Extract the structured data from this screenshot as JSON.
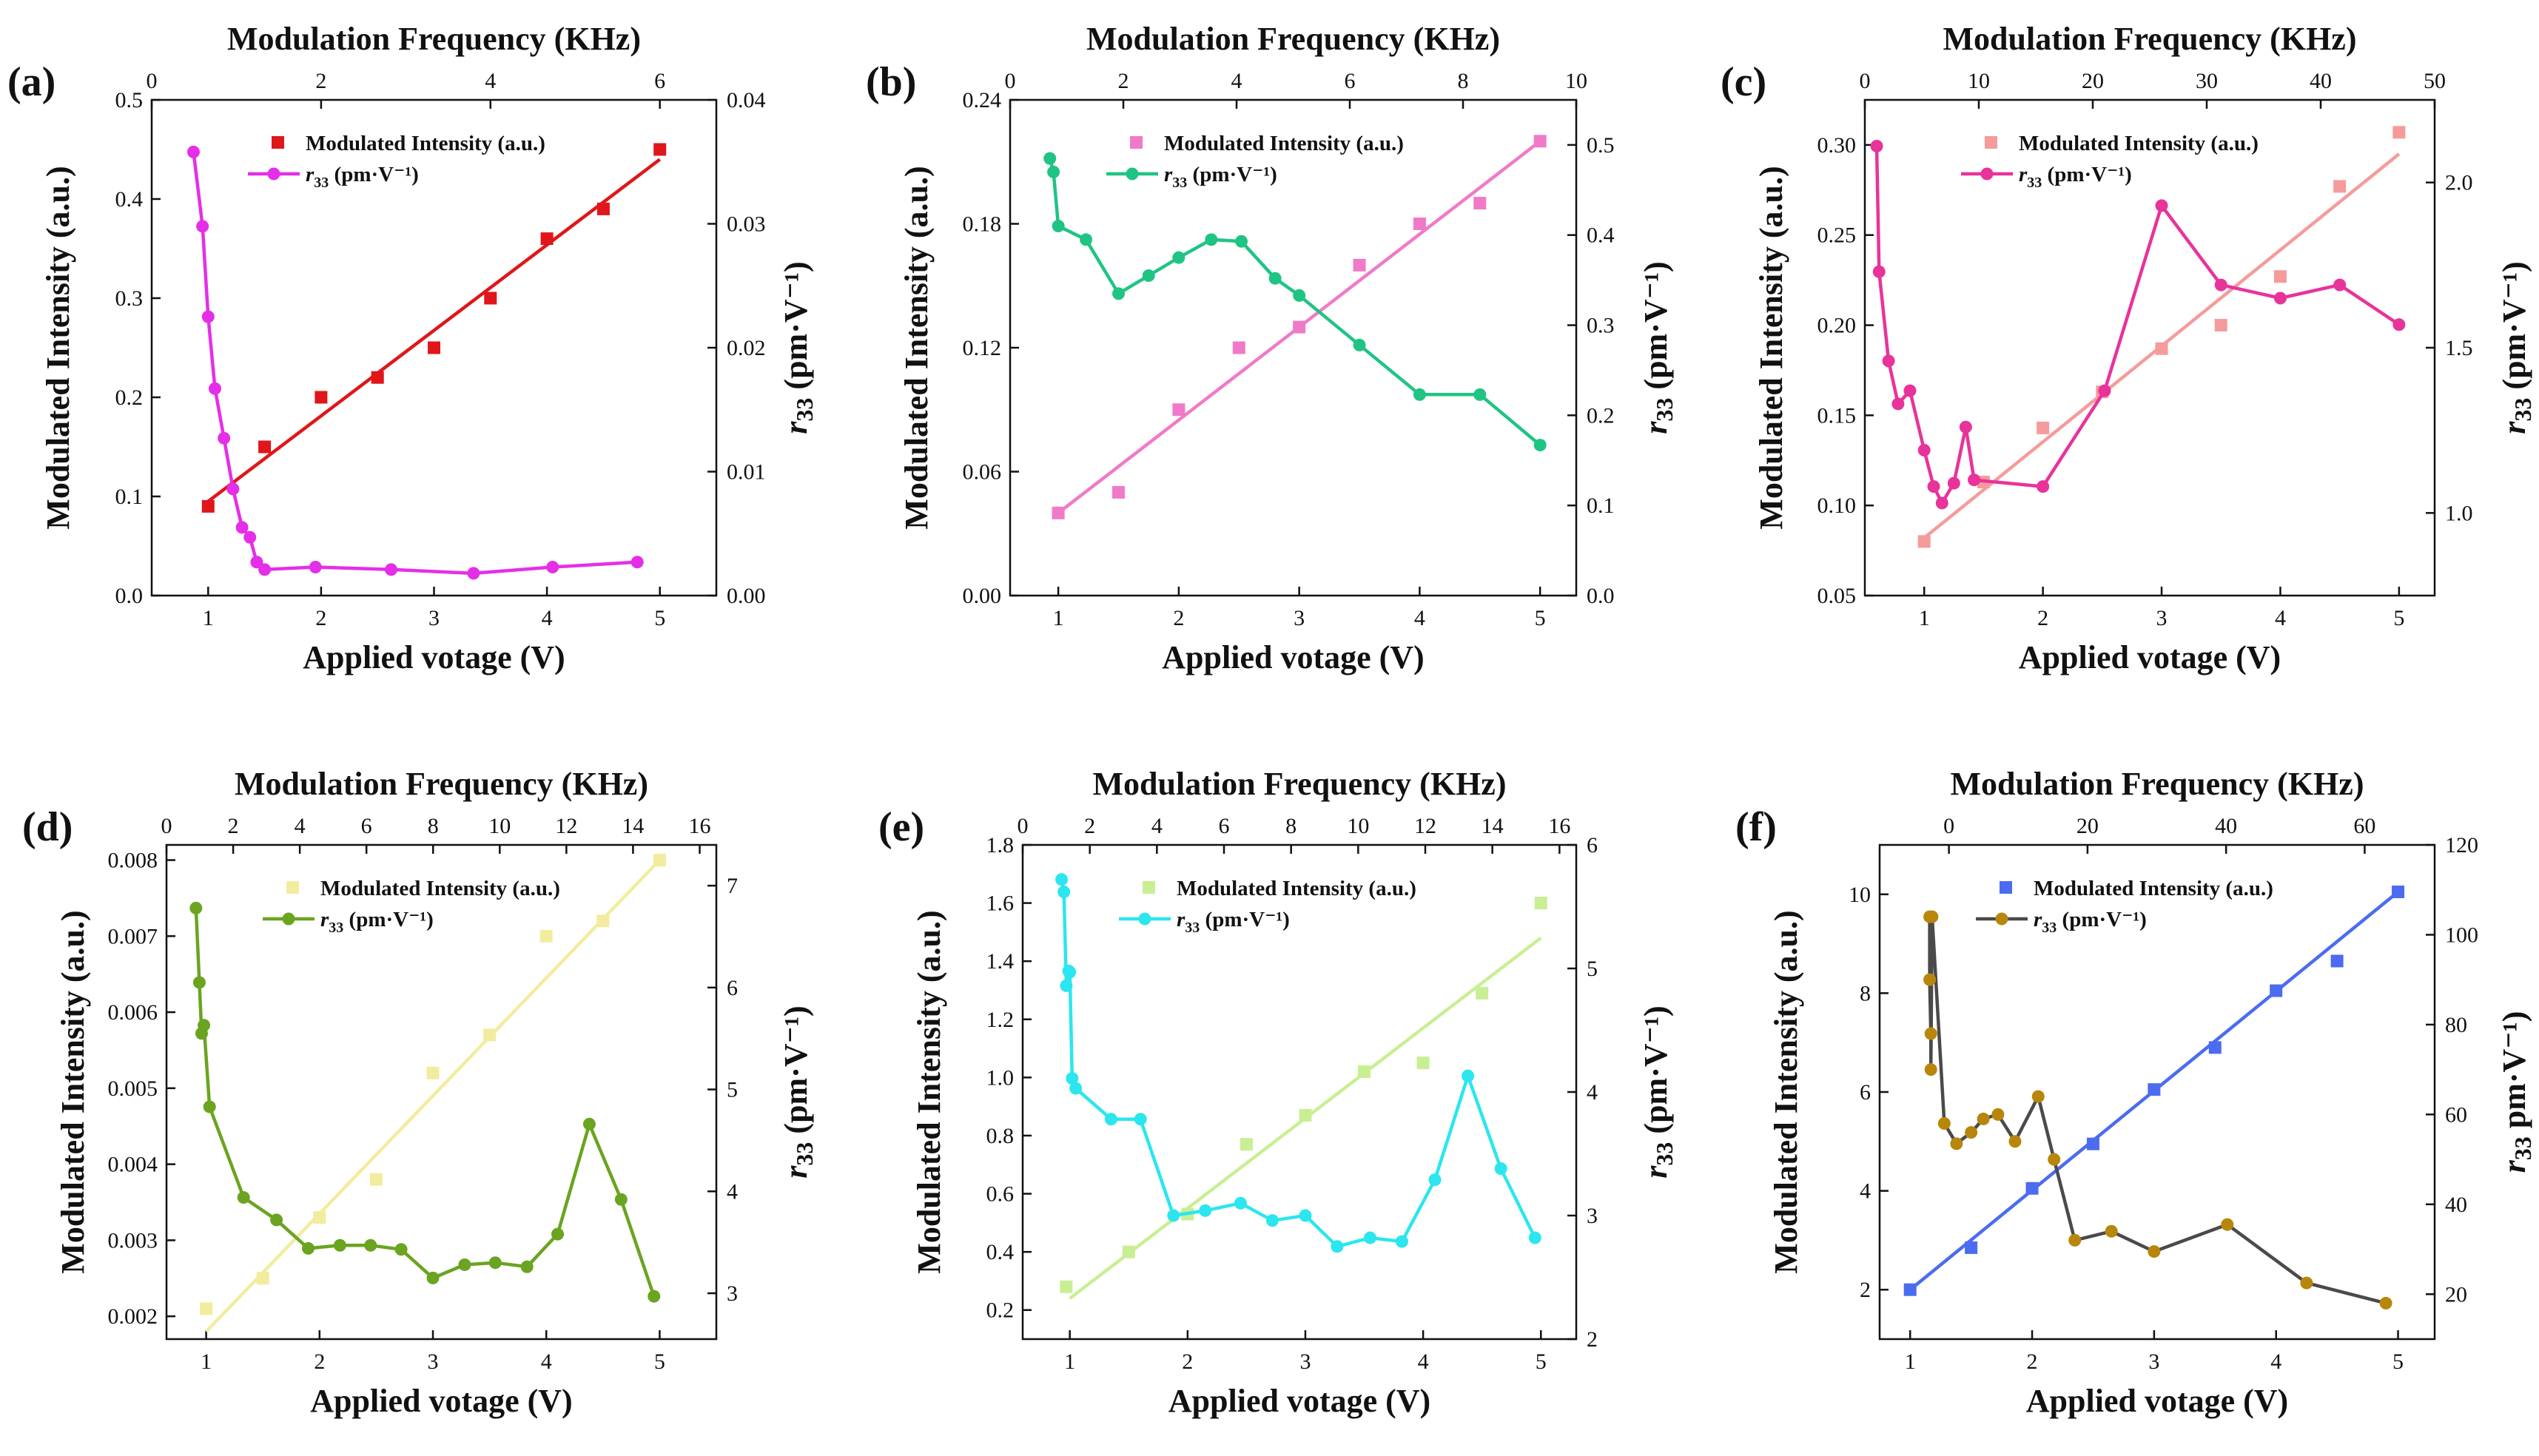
{
  "figure": {
    "panels": [
      {
        "label": "(a)",
        "top_label": "Modulation Frequency (KHz)",
        "bottom_label": "Applied votage (V)",
        "left_label": "Modulated Intensity (a.u.)",
        "right_label_main": "r",
        "right_label_sub": "33",
        "right_label_rest": " (pm·V⁻¹)",
        "legend_intensity": "Modulated Intensity (a.u.)",
        "legend_r33_main": "r",
        "legend_r33_sub": "33",
        "legend_r33_rest": " (pm·V⁻¹)",
        "colors": {
          "intensity": "#e0161a",
          "r33": "#e52ee8"
        }
      },
      {
        "label": "(b)",
        "top_label": "Modulation Frequency (KHz)",
        "bottom_label": "Applied votage (V)",
        "left_label": "Modulated Intensity (a.u.)",
        "right_label_main": "r",
        "right_label_sub": "33",
        "right_label_rest": " (pm·V⁻¹)",
        "legend_intensity": "Modulated Intensity (a.u.)",
        "legend_r33_main": "r",
        "legend_r33_sub": "33",
        "legend_r33_rest": " (pm·V⁻¹)",
        "colors": {
          "intensity": "#f07ac8",
          "r33": "#1fc483"
        }
      },
      {
        "label": "(c)",
        "top_label": "Modulation Frequency (KHz)",
        "bottom_label": "Applied votage (V)",
        "left_label": "Modulated Intensity (a.u.)",
        "right_label_main": "r",
        "right_label_sub": "33",
        "right_label_rest": " (pm·V⁻¹)",
        "legend_intensity": "Modulated Intensity (a.u.)",
        "legend_r33_main": "r",
        "legend_r33_sub": "33",
        "legend_r33_rest": " (pm·V⁻¹)",
        "colors": {
          "intensity": "#f59b9b",
          "r33": "#e8339b"
        }
      },
      {
        "label": "(d)",
        "top_label": "Modulation Frequency (KHz)",
        "bottom_label": "Applied votage (V)",
        "left_label": "Modulated Intensity (a.u.)",
        "right_label_main": "r",
        "right_label_sub": "33",
        "right_label_rest": " (pm·V⁻¹)",
        "legend_intensity": "Modulated Intensity (a.u.)",
        "legend_r33_main": "r",
        "legend_r33_sub": "33",
        "legend_r33_rest": " (pm·V⁻¹)",
        "colors": {
          "intensity": "#f2ec9e",
          "r33": "#6aa421"
        }
      },
      {
        "label": "(e)",
        "top_label": "Modulation Frequency (KHz)",
        "bottom_label": "Applied votage (V)",
        "left_label": "Modulated Intensity (a.u.)",
        "right_label_main": "r",
        "right_label_sub": "33",
        "right_label_rest": " (pm·V⁻¹)",
        "legend_intensity": "Modulated Intensity (a.u.)",
        "legend_r33_main": "r",
        "legend_r33_sub": "33",
        "legend_r33_rest": " (pm·V⁻¹)",
        "colors": {
          "intensity": "#c8ef93",
          "r33": "#2be6ef"
        }
      },
      {
        "label": "(f)",
        "top_label": "Modulation Frequency (KHz)",
        "bottom_label": "Applied votage (V)",
        "left_label": "Modulated Intensity (a.u.)",
        "right_label_main": "r",
        "right_label_sub": "33",
        "right_label_rest": " pm·V⁻¹)",
        "legend_intensity": "Modulated Intensity (a.u.)",
        "legend_r33_main": "r",
        "legend_r33_sub": "33",
        "legend_r33_rest": " (pm·V⁻¹)",
        "colors": {
          "intensity": "#4b6cf0",
          "r33": "#4a4a4a",
          "r33_marker": "#b8860b"
        }
      }
    ]
  },
  "chart_data": [
    {
      "type": "scatter",
      "panel": "(a)",
      "xlabel": "Applied votage (V)",
      "x2label": "Modulation Frequency (KHz)",
      "ylabel": "Modulated Intensity (a.u.)",
      "y2label": "r33 (pm·V⁻¹)",
      "xlim": [
        0.5,
        5.5
      ],
      "xticks": [
        1,
        2,
        3,
        4,
        5
      ],
      "x2lim": [
        0,
        6.667
      ],
      "x2ticks": [
        0,
        2,
        4,
        6
      ],
      "ylim": [
        0,
        0.5
      ],
      "yticks": [
        0.0,
        0.1,
        0.2,
        0.3,
        0.4,
        0.5
      ],
      "ytick_labels": [
        "0.0",
        "0.1",
        "0.2",
        "0.3",
        "0.4",
        "0.5"
      ],
      "y2lim": [
        0,
        0.04
      ],
      "y2ticks": [
        0,
        0.01,
        0.02,
        0.03,
        0.04
      ],
      "y2tick_labels": [
        "0.00",
        "0.01",
        "0.02",
        "0.03",
        "0.04"
      ],
      "intensity": {
        "x": [
          1.0,
          1.5,
          2.0,
          2.5,
          3.0,
          3.5,
          4.0,
          4.5,
          5.0
        ],
        "y": [
          0.09,
          0.15,
          0.2,
          0.22,
          0.25,
          0.3,
          0.36,
          0.39,
          0.45
        ],
        "marker": "square"
      },
      "fit": {
        "x": [
          1.0,
          5.0
        ],
        "y": [
          0.095,
          0.44
        ]
      },
      "r33": {
        "x": [
          0.87,
          0.95,
          1.0,
          1.06,
          1.14,
          1.22,
          1.3,
          1.37,
          1.43,
          1.5,
          1.95,
          2.62,
          3.35,
          4.05,
          4.8
        ],
        "y": [
          0.0358,
          0.0298,
          0.0225,
          0.0167,
          0.0127,
          0.0086,
          0.0055,
          0.0047,
          0.0027,
          0.0021,
          0.0023,
          0.0021,
          0.0018,
          0.0023,
          0.0027
        ],
        "marker": "circle"
      }
    },
    {
      "type": "scatter",
      "panel": "(b)",
      "xlabel": "Applied votage (V)",
      "x2label": "Modulation Frequency (KHz)",
      "ylabel": "Modulated Intensity (a.u.)",
      "y2label": "r33 (pm·V⁻¹)",
      "xlim": [
        0.6,
        5.3
      ],
      "xticks": [
        1,
        2,
        3,
        4,
        5
      ],
      "x2lim": [
        0,
        10
      ],
      "x2ticks": [
        0,
        2,
        4,
        6,
        8,
        10
      ],
      "ylim": [
        0,
        0.24
      ],
      "yticks": [
        0,
        0.06,
        0.12,
        0.18,
        0.24
      ],
      "ytick_labels": [
        "0.00",
        "0.06",
        "0.12",
        "0.18",
        "0.24"
      ],
      "y2lim": [
        0,
        0.55
      ],
      "y2ticks": [
        0,
        0.1,
        0.2,
        0.3,
        0.4,
        0.5
      ],
      "y2tick_labels": [
        "0.0",
        "0.1",
        "0.2",
        "0.3",
        "0.4",
        "0.5"
      ],
      "intensity": {
        "x": [
          1.0,
          1.5,
          2.0,
          2.5,
          3.0,
          3.5,
          4.0,
          4.5,
          5.0
        ],
        "y": [
          0.04,
          0.05,
          0.09,
          0.12,
          0.13,
          0.16,
          0.18,
          0.19,
          0.22
        ],
        "marker": "square"
      },
      "fit": {
        "x": [
          1.0,
          5.0
        ],
        "y": [
          0.04,
          0.22
        ]
      },
      "r33": {
        "x": [
          0.93,
          0.96,
          1.0,
          1.23,
          1.5,
          1.75,
          2.0,
          2.27,
          2.52,
          2.8,
          3.0,
          3.5,
          4.0,
          4.5,
          5.0
        ],
        "y": [
          0.485,
          0.47,
          0.41,
          0.395,
          0.335,
          0.355,
          0.375,
          0.395,
          0.393,
          0.352,
          0.333,
          0.278,
          0.223,
          0.223,
          0.167
        ],
        "marker": "circle"
      }
    },
    {
      "type": "scatter",
      "panel": "(c)",
      "xlabel": "Applied votage (V)",
      "x2label": "Modulation Frequency (KHz)",
      "ylabel": "Modulated Intensity (a.u.)",
      "y2label": "r33 (pm·V⁻¹)",
      "xlim": [
        0.5,
        5.3
      ],
      "xticks": [
        1,
        2,
        3,
        4,
        5
      ],
      "x2lim": [
        0,
        50
      ],
      "x2ticks": [
        0,
        10,
        20,
        30,
        40,
        50
      ],
      "ylim": [
        0.05,
        0.325
      ],
      "yticks": [
        0.05,
        0.1,
        0.15,
        0.2,
        0.25,
        0.3
      ],
      "ytick_labels": [
        "0.05",
        "0.10",
        "0.15",
        "0.20",
        "0.25",
        "0.30"
      ],
      "y2lim": [
        0.75,
        2.25
      ],
      "y2ticks": [
        1.0,
        1.5,
        2.0
      ],
      "y2tick_labels": [
        "1.0",
        "1.5",
        "2.0"
      ],
      "intensity": {
        "x": [
          1.0,
          1.5,
          2.0,
          2.5,
          3.0,
          3.5,
          4.0,
          4.5,
          5.0
        ],
        "y": [
          0.08,
          0.113,
          0.143,
          0.163,
          0.187,
          0.2,
          0.227,
          0.277,
          0.307
        ],
        "marker": "square"
      },
      "fit": {
        "x": [
          1.0,
          5.0
        ],
        "y": [
          0.082,
          0.295
        ]
      },
      "r33": {
        "x": [
          0.6,
          0.62,
          0.7,
          0.78,
          0.88,
          1.0,
          1.08,
          1.15,
          1.25,
          1.35,
          1.42,
          2.0,
          2.52,
          3.0,
          3.5,
          4.0,
          4.5,
          5.0
        ],
        "y": [
          2.11,
          1.73,
          1.46,
          1.33,
          1.37,
          1.19,
          1.08,
          1.03,
          1.09,
          1.26,
          1.1,
          1.08,
          1.37,
          1.93,
          1.69,
          1.65,
          1.69,
          1.57
        ],
        "marker": "circle"
      }
    },
    {
      "type": "scatter",
      "panel": "(d)",
      "xlabel": "Applied votage (V)",
      "x2label": "Modulation Frequency (KHz)",
      "ylabel": "Modulated Intensity (a.u.)",
      "y2label": "r33 (pm·V⁻¹)",
      "xlim": [
        0.65,
        5.5
      ],
      "xticks": [
        1,
        2,
        3,
        4,
        5
      ],
      "x2lim": [
        0,
        16.5
      ],
      "x2ticks": [
        0,
        2,
        4,
        6,
        8,
        10,
        12,
        14,
        16
      ],
      "ylim": [
        0.0017,
        0.0082
      ],
      "yticks": [
        0.002,
        0.003,
        0.004,
        0.005,
        0.006,
        0.007,
        0.008
      ],
      "ytick_labels": [
        "0.002",
        "0.003",
        "0.004",
        "0.005",
        "0.006",
        "0.007",
        "0.008"
      ],
      "y2lim": [
        2.55,
        7.4
      ],
      "y2ticks": [
        3,
        4,
        5,
        6,
        7
      ],
      "y2tick_labels": [
        "3",
        "4",
        "5",
        "6",
        "7"
      ],
      "intensity": {
        "x": [
          1.0,
          1.5,
          2.0,
          2.5,
          3.0,
          3.5,
          4.0,
          4.5,
          5.0
        ],
        "y": [
          0.0021,
          0.0025,
          0.0033,
          0.0038,
          0.0052,
          0.0057,
          0.007,
          0.0072,
          0.008
        ],
        "marker": "square"
      },
      "fit": {
        "x": [
          1.0,
          5.0
        ],
        "y": [
          0.0018,
          0.008
        ]
      },
      "r33": {
        "x": [
          0.91,
          0.94,
          0.96,
          0.98,
          1.03,
          1.33,
          1.62,
          1.9,
          2.18,
          2.45,
          2.72,
          3.0,
          3.28,
          3.55,
          3.83,
          4.1,
          4.38,
          4.66,
          4.95
        ],
        "y": [
          6.78,
          6.05,
          5.55,
          5.63,
          4.83,
          3.94,
          3.72,
          3.44,
          3.47,
          3.47,
          3.43,
          3.15,
          3.28,
          3.3,
          3.26,
          3.58,
          4.66,
          3.92,
          2.97
        ],
        "marker": "circle"
      }
    },
    {
      "type": "scatter",
      "panel": "(e)",
      "xlabel": "Applied votage (V)",
      "x2label": "Modulation Frequency (KHz)",
      "ylabel": "Modulated Intensity (a.u.)",
      "y2label": "r33 (pm·V⁻¹)",
      "xlim": [
        0.6,
        5.3
      ],
      "xticks": [
        1,
        2,
        3,
        4,
        5
      ],
      "x2lim": [
        0,
        16.5
      ],
      "x2ticks": [
        0,
        2,
        4,
        6,
        8,
        10,
        12,
        14,
        16
      ],
      "ylim": [
        0.1,
        1.8
      ],
      "yticks": [
        0.2,
        0.4,
        0.6,
        0.8,
        1.0,
        1.2,
        1.4,
        1.6,
        1.8
      ],
      "ytick_labels": [
        "0.2",
        "0.4",
        "0.6",
        "0.8",
        "1.0",
        "1.2",
        "1.4",
        "1.6",
        "1.8"
      ],
      "y2lim": [
        2,
        6
      ],
      "y2ticks": [
        2,
        3,
        4,
        5,
        6
      ],
      "y2tick_labels": [
        "2",
        "3",
        "4",
        "5",
        "6"
      ],
      "intensity": {
        "x": [
          0.97,
          1.5,
          2.0,
          2.5,
          3.0,
          3.5,
          4.0,
          4.5,
          5.0
        ],
        "y": [
          0.28,
          0.4,
          0.53,
          0.77,
          0.87,
          1.02,
          1.05,
          1.29,
          1.6
        ],
        "marker": "square"
      },
      "fit": {
        "x": [
          1.0,
          5.0
        ],
        "y": [
          0.24,
          1.48
        ]
      },
      "r33": {
        "x": [
          0.93,
          0.95,
          0.97,
          0.99,
          1.0,
          1.02,
          1.05,
          1.35,
          1.6,
          1.88,
          2.15,
          2.45,
          2.72,
          3.0,
          3.27,
          3.55,
          3.82,
          4.1,
          4.38,
          4.66,
          4.95
        ],
        "y": [
          5.72,
          5.62,
          4.86,
          4.98,
          4.97,
          4.11,
          4.03,
          3.78,
          3.78,
          3.0,
          3.04,
          3.1,
          2.96,
          3.0,
          2.75,
          2.82,
          2.79,
          3.29,
          4.13,
          3.38,
          2.82
        ],
        "marker": "circle"
      }
    },
    {
      "type": "scatter",
      "panel": "(f)",
      "xlabel": "Applied votage (V)",
      "x2label": "Modulation Frequency (KHz)",
      "ylabel": "Modulated Intensity (a.u.)",
      "y2label": "r33 pm·V⁻¹)",
      "xlim": [
        0.75,
        5.3
      ],
      "xticks": [
        1,
        2,
        3,
        4,
        5
      ],
      "x2lim": [
        -10.0,
        70.1
      ],
      "x2ticks": [
        0,
        20,
        40,
        60
      ],
      "ylim": [
        1.0,
        11.0
      ],
      "yticks": [
        2,
        4,
        6,
        8,
        10
      ],
      "ytick_labels": [
        "2",
        "4",
        "6",
        "8",
        "10"
      ],
      "y2lim": [
        10,
        120
      ],
      "y2ticks": [
        20,
        40,
        60,
        80,
        100,
        120
      ],
      "y2tick_labels": [
        "20",
        "40",
        "60",
        "80",
        "100",
        "120"
      ],
      "intensity": {
        "x": [
          1.0,
          1.5,
          2.0,
          2.5,
          3.0,
          3.5,
          4.0,
          4.5,
          5.0
        ],
        "y": [
          2.0,
          2.85,
          4.05,
          4.95,
          6.05,
          6.9,
          8.05,
          8.65,
          10.05
        ],
        "marker": "square"
      },
      "fit": {
        "x": [
          1.0,
          5.0
        ],
        "y": [
          2.0,
          10.05
        ]
      },
      "r33": {
        "x": [
          1.16,
          1.16,
          1.17,
          1.17,
          1.18,
          1.28,
          1.38,
          1.5,
          1.6,
          1.72,
          1.86,
          2.05,
          2.18,
          2.35,
          2.65,
          3.0,
          3.6,
          4.25,
          4.9
        ],
        "y": [
          104,
          90,
          78,
          70,
          104,
          58,
          53.5,
          56,
          59,
          60,
          54,
          64,
          50,
          32,
          34,
          29.5,
          35.5,
          22.5,
          18
        ],
        "marker": "circle"
      }
    }
  ]
}
